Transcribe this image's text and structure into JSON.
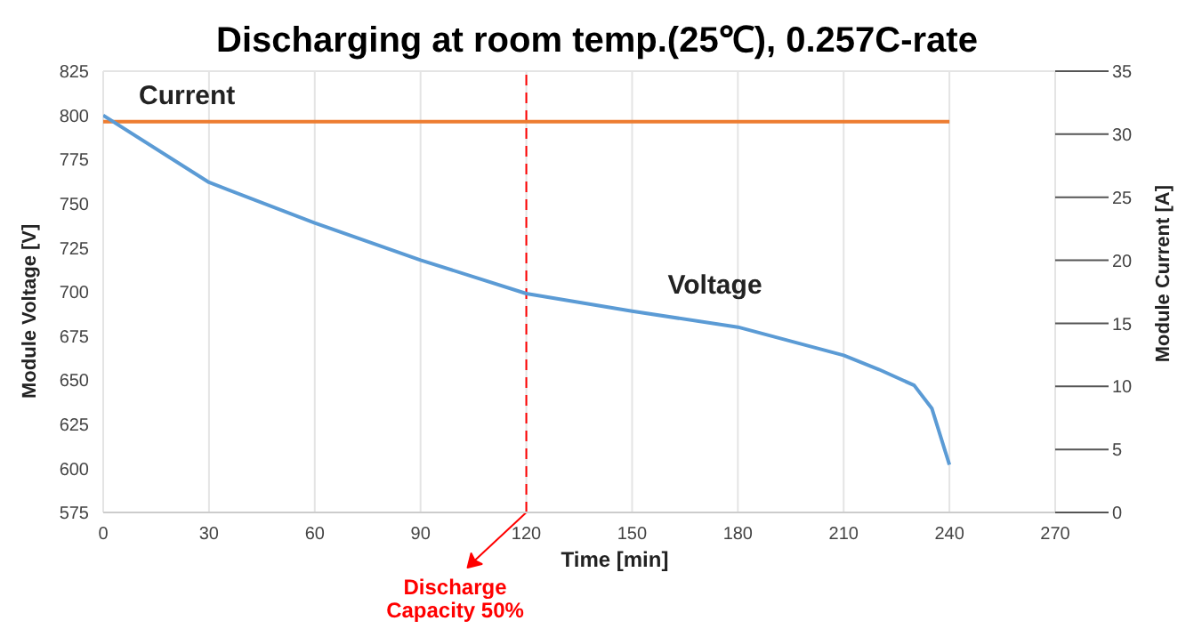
{
  "chart_data": {
    "type": "line",
    "title": "Discharging at room temp.(25℃), 0.257C-rate",
    "xlabel": "Time [min]",
    "ylabel": "Module Voltage [V]",
    "y2label": "Module Current [A]",
    "series": [
      {
        "name": "Current",
        "color": "#ed7d31",
        "axis": "y2",
        "x": [
          0,
          240
        ],
        "values": [
          31,
          31
        ]
      },
      {
        "name": "Voltage",
        "color": "#5b9bd5",
        "x": [
          0,
          30,
          60,
          90,
          120,
          150,
          180,
          210,
          220,
          230,
          235,
          240
        ],
        "values": [
          800,
          762,
          739,
          718,
          699,
          689,
          680,
          664,
          656,
          647,
          634,
          602
        ]
      }
    ],
    "xlim": [
      0,
      270
    ],
    "xticks": [
      0,
      30,
      60,
      90,
      120,
      150,
      180,
      210,
      240,
      270
    ],
    "ylim": [
      575,
      825
    ],
    "yticks": [
      575,
      600,
      625,
      650,
      675,
      700,
      725,
      750,
      775,
      800,
      825
    ],
    "y2lim": [
      0,
      35
    ],
    "y2ticks": [
      0,
      5,
      10,
      15,
      20,
      25,
      30,
      35
    ],
    "ref_lines": [
      {
        "axis": "x",
        "value": 120,
        "label": "Discharge Capacity 50%",
        "color": "#ff0000",
        "line_style": "dashed"
      }
    ],
    "grid": true,
    "legend": false,
    "marker": "none",
    "line_style": "solid"
  }
}
